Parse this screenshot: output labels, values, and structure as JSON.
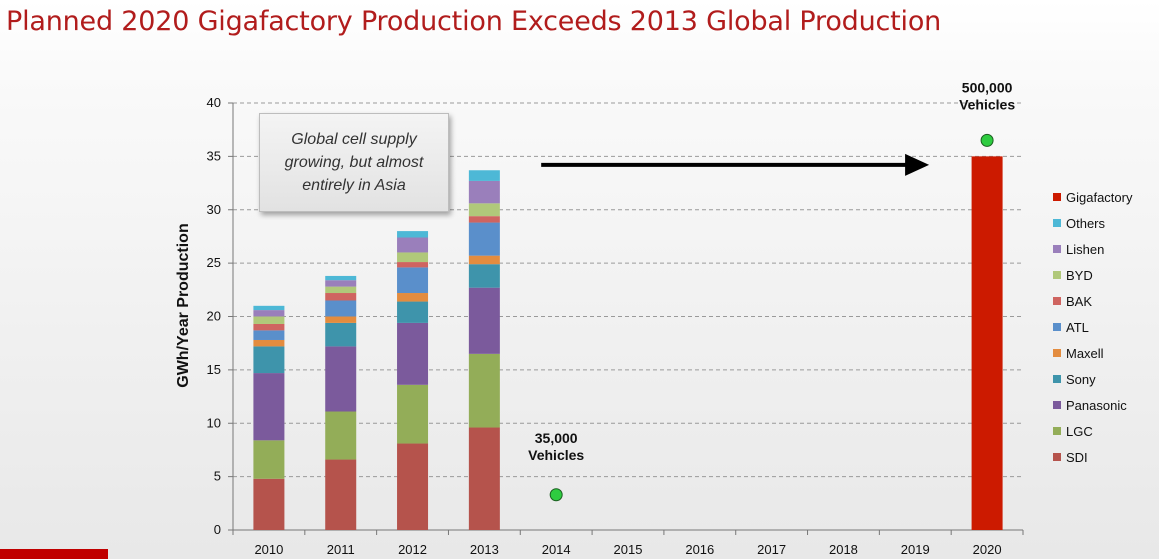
{
  "title": "Planned 2020 Gigafactory Production Exceeds 2013 Global Production",
  "chart_data": {
    "type": "bar",
    "stacked": true,
    "title": "Planned 2020 Gigafactory Production Exceeds 2013 Global Production",
    "xlabel": "",
    "ylabel": "GWh/Year Production",
    "ylim": [
      0,
      40
    ],
    "yticks": [
      0,
      5,
      10,
      15,
      20,
      25,
      30,
      35,
      40
    ],
    "grid": true,
    "legend_position": "right",
    "categories": [
      "2010",
      "2011",
      "2012",
      "2013",
      "2014",
      "2015",
      "2016",
      "2017",
      "2018",
      "2019",
      "2020"
    ],
    "series": [
      {
        "name": "SDI",
        "color": "#b5534c",
        "values": [
          4.8,
          6.6,
          8.1,
          9.6,
          0,
          0,
          0,
          0,
          0,
          0,
          0
        ]
      },
      {
        "name": "LGC",
        "color": "#93ad58",
        "values": [
          3.6,
          4.5,
          5.5,
          6.9,
          0,
          0,
          0,
          0,
          0,
          0,
          0
        ]
      },
      {
        "name": "Panasonic",
        "color": "#7b5a9c",
        "values": [
          6.3,
          6.1,
          5.8,
          6.2,
          0,
          0,
          0,
          0,
          0,
          0,
          0
        ]
      },
      {
        "name": "Sony",
        "color": "#3e94ab",
        "values": [
          2.5,
          2.2,
          2.0,
          2.2,
          0,
          0,
          0,
          0,
          0,
          0,
          0
        ]
      },
      {
        "name": "Maxell",
        "color": "#e38c3f",
        "values": [
          0.6,
          0.6,
          0.8,
          0.8,
          0,
          0,
          0,
          0,
          0,
          0,
          0
        ]
      },
      {
        "name": "ATL",
        "color": "#5a8fcb",
        "values": [
          0.9,
          1.5,
          2.4,
          3.1,
          0,
          0,
          0,
          0,
          0,
          0,
          0
        ]
      },
      {
        "name": "BAK",
        "color": "#cf6460",
        "values": [
          0.6,
          0.7,
          0.5,
          0.6,
          0,
          0,
          0,
          0,
          0,
          0,
          0
        ]
      },
      {
        "name": "BYD",
        "color": "#b0c87a",
        "values": [
          0.7,
          0.6,
          0.9,
          1.2,
          0,
          0,
          0,
          0,
          0,
          0,
          0
        ]
      },
      {
        "name": "Lishen",
        "color": "#9a7fbb",
        "values": [
          0.6,
          0.6,
          1.4,
          2.1,
          0,
          0,
          0,
          0,
          0,
          0,
          0
        ]
      },
      {
        "name": "Others",
        "color": "#4db8d6",
        "values": [
          0.4,
          0.4,
          0.6,
          1.0,
          0,
          0,
          0,
          0,
          0,
          0,
          0
        ]
      },
      {
        "name": "Gigafactory",
        "color": "#cc1a00",
        "values": [
          0,
          0,
          0,
          0,
          0,
          0,
          0,
          0,
          0,
          0,
          35
        ]
      }
    ],
    "markers": [
      {
        "x": "2014",
        "y": 3.3,
        "label_line1": "35,000",
        "label_line2": "Vehicles",
        "color": "#2ecc40"
      },
      {
        "x": "2020",
        "y": 36.5,
        "label_line1": "500,000",
        "label_line2": "Vehicles",
        "color": "#2ecc40"
      }
    ],
    "arrow": {
      "from_category": "2014",
      "to_category": "2020",
      "y": 34.2
    },
    "annotation": "Global cell supply growing, but almost entirely in Asia"
  }
}
